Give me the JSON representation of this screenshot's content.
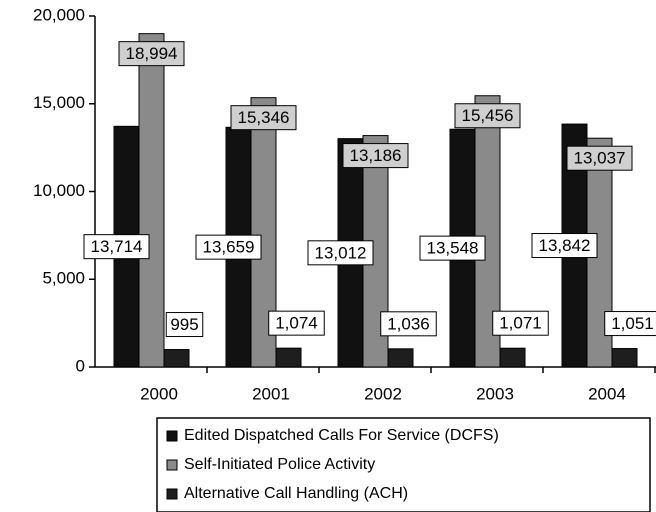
{
  "chart_data": {
    "type": "bar",
    "categories": [
      "2000",
      "2001",
      "2002",
      "2003",
      "2004"
    ],
    "series": [
      {
        "name": "Edited Dispatched Calls For Service (DCFS)",
        "color": "#111111",
        "values": [
          13714,
          13659,
          13012,
          13548,
          13842
        ],
        "value_labels": [
          "13,714",
          "13,659",
          "13,012",
          "13,548",
          "13,842"
        ]
      },
      {
        "name": "Self-Initiated Police Activity",
        "color": "#8a8a8a",
        "values": [
          18994,
          15346,
          13186,
          15456,
          13037
        ],
        "value_labels": [
          "18,994",
          "15,346",
          "13,186",
          "15,456",
          "13,037"
        ]
      },
      {
        "name": "Alternative Call Handling (ACH)",
        "color": "#1e1e1e",
        "values": [
          995,
          1074,
          1036,
          1071,
          1051
        ],
        "value_labels": [
          "995",
          "1,074",
          "1,036",
          "1,071",
          "1,051"
        ]
      }
    ],
    "ylim": [
      0,
      20000
    ],
    "yticks": [
      0,
      {
        "value": 5000,
        "label": "5,000"
      },
      {
        "value": 10000,
        "label": "10,000"
      },
      {
        "value": 15000,
        "label": "15,000"
      },
      {
        "value": 20000,
        "label": "20,000"
      }
    ],
    "legend": "bottom"
  }
}
